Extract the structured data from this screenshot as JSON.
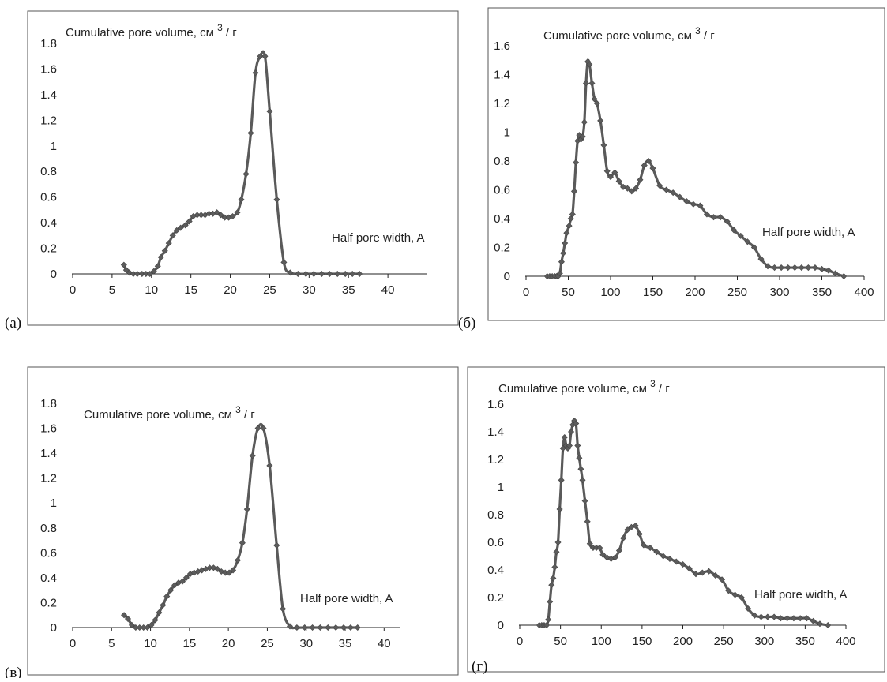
{
  "chart_data": [
    {
      "panel_label": "(а)",
      "type": "line",
      "ylabel_main": "Cumulative pore volume, см",
      "ylabel_sup": "3",
      "ylabel_tail": "/ г",
      "xlabel": "Half pore width, A",
      "xlim": [
        0,
        45
      ],
      "ylim": [
        0,
        1.8
      ],
      "x_ticks": [
        0,
        5,
        10,
        15,
        20,
        25,
        30,
        35,
        40
      ],
      "y_ticks": [
        0,
        0.2,
        0.4,
        0.6,
        0.8,
        1,
        1.2,
        1.4,
        1.6,
        1.8
      ],
      "series": [
        {
          "x": [
            6.5,
            6.8,
            7.2,
            7.7,
            8.2,
            8.8,
            9.3,
            9.8,
            10.3,
            10.8,
            11.2,
            11.7,
            12.2,
            12.7,
            13.2,
            13.7,
            14.3,
            14.8,
            15.3,
            15.8,
            16.3,
            16.8,
            17.3,
            17.8,
            18.3,
            18.8,
            19.3,
            19.8,
            20.3,
            20.9,
            21.4,
            22.0,
            22.6,
            23.2,
            23.8,
            24.4,
            25.0,
            25.9,
            26.8,
            27.6,
            28.6,
            29.6,
            30.6,
            31.6,
            32.6,
            33.6,
            34.6,
            35.5,
            36.4
          ],
          "y": [
            0.07,
            0.03,
            0.01,
            0.0,
            0.0,
            0.0,
            0.0,
            0.0,
            0.02,
            0.06,
            0.13,
            0.18,
            0.24,
            0.3,
            0.34,
            0.36,
            0.38,
            0.41,
            0.45,
            0.46,
            0.46,
            0.46,
            0.47,
            0.47,
            0.48,
            0.46,
            0.44,
            0.44,
            0.45,
            0.48,
            0.58,
            0.78,
            1.1,
            1.57,
            1.7,
            1.7,
            1.27,
            0.58,
            0.09,
            0.01,
            0.0,
            0.0,
            0.0,
            0.0,
            0.0,
            0.0,
            0.0,
            0.0,
            0.0
          ]
        }
      ]
    },
    {
      "panel_label": "(б)",
      "type": "line",
      "ylabel_main": "Cumulative pore volume, см",
      "ylabel_sup": "3",
      "ylabel_tail": "/ г",
      "xlabel": "Half pore width, A",
      "xlim": [
        0,
        400
      ],
      "ylim": [
        0,
        1.6
      ],
      "x_ticks": [
        0,
        50,
        100,
        150,
        200,
        250,
        300,
        350,
        400
      ],
      "y_ticks": [
        0,
        0.2,
        0.4,
        0.6,
        0.8,
        1,
        1.2,
        1.4,
        1.6
      ],
      "series": [
        {
          "x": [
            25,
            28,
            31,
            34,
            36,
            38,
            40,
            42,
            44,
            46,
            48,
            51,
            53,
            55,
            57,
            59,
            61,
            63,
            65,
            67,
            69,
            71,
            73,
            75,
            78,
            81,
            84,
            88,
            92,
            96,
            100,
            105,
            110,
            115,
            120,
            125,
            130,
            135,
            140,
            145,
            150,
            158,
            166,
            174,
            182,
            190,
            198,
            206,
            214,
            222,
            230,
            238,
            246,
            254,
            262,
            270,
            278,
            286,
            294,
            302,
            310,
            318,
            326,
            334,
            342,
            350,
            358,
            366,
            376
          ],
          "y": [
            0.0,
            0.0,
            0.0,
            0.0,
            0.0,
            0.0,
            0.02,
            0.1,
            0.16,
            0.23,
            0.3,
            0.35,
            0.4,
            0.43,
            0.59,
            0.79,
            0.94,
            0.98,
            0.95,
            0.97,
            1.07,
            1.34,
            1.49,
            1.47,
            1.34,
            1.23,
            1.2,
            1.08,
            0.91,
            0.73,
            0.69,
            0.72,
            0.66,
            0.62,
            0.61,
            0.59,
            0.61,
            0.67,
            0.77,
            0.8,
            0.75,
            0.63,
            0.6,
            0.58,
            0.55,
            0.52,
            0.5,
            0.49,
            0.43,
            0.41,
            0.41,
            0.38,
            0.32,
            0.28,
            0.24,
            0.2,
            0.12,
            0.07,
            0.06,
            0.06,
            0.06,
            0.06,
            0.06,
            0.06,
            0.06,
            0.05,
            0.04,
            0.02,
            0.0
          ]
        }
      ]
    },
    {
      "panel_label": "(в)",
      "type": "line",
      "ylabel_main": "Cumulative pore volume, см",
      "ylabel_sup": "3",
      "ylabel_tail": "/ г",
      "xlabel": "Half pore width, A",
      "xlim": [
        0,
        42
      ],
      "ylim": [
        0,
        1.8
      ],
      "x_ticks": [
        0,
        5,
        10,
        15,
        20,
        25,
        30,
        35,
        40
      ],
      "y_ticks": [
        0,
        0.2,
        0.4,
        0.6,
        0.8,
        1,
        1.2,
        1.4,
        1.6,
        1.8
      ],
      "series": [
        {
          "x": [
            6.6,
            7.1,
            7.6,
            8.1,
            8.6,
            9.1,
            9.6,
            10.1,
            10.6,
            11.1,
            11.6,
            12.1,
            12.6,
            13.1,
            13.6,
            14.1,
            14.6,
            15.1,
            15.6,
            16.1,
            16.6,
            17.1,
            17.6,
            18.1,
            18.6,
            19.1,
            19.6,
            20.1,
            20.6,
            21.2,
            21.8,
            22.4,
            23.1,
            23.8,
            24.5,
            25.3,
            26.2,
            27.0,
            27.9,
            28.8,
            29.8,
            30.8,
            31.8,
            32.8,
            33.8,
            34.8,
            35.7,
            36.6
          ],
          "y": [
            0.1,
            0.07,
            0.02,
            0.0,
            0.0,
            0.0,
            0.0,
            0.02,
            0.06,
            0.12,
            0.18,
            0.25,
            0.3,
            0.34,
            0.36,
            0.37,
            0.4,
            0.43,
            0.44,
            0.45,
            0.46,
            0.47,
            0.48,
            0.48,
            0.47,
            0.45,
            0.44,
            0.44,
            0.46,
            0.54,
            0.68,
            0.95,
            1.38,
            1.6,
            1.6,
            1.3,
            0.66,
            0.15,
            0.01,
            0.0,
            0.0,
            0.0,
            0.0,
            0.0,
            0.0,
            0.0,
            0.0,
            0.0
          ]
        }
      ]
    },
    {
      "panel_label": "(г)",
      "type": "line",
      "ylabel_main": "Cumulative pore volume, см",
      "ylabel_sup": "3",
      "ylabel_tail": "/ г",
      "xlabel": "Half pore width, A",
      "xlim": [
        0,
        400
      ],
      "ylim": [
        0,
        1.6
      ],
      "x_ticks": [
        0,
        50,
        100,
        150,
        200,
        250,
        300,
        350,
        400
      ],
      "y_ticks": [
        0,
        0.2,
        0.4,
        0.6,
        0.8,
        1,
        1.2,
        1.4,
        1.6
      ],
      "series": [
        {
          "x": [
            24,
            27,
            30,
            33,
            35,
            37,
            39,
            41,
            43,
            45,
            47,
            49,
            51,
            53,
            55,
            57,
            59,
            61,
            63,
            65,
            67,
            69,
            71,
            73,
            75,
            77,
            80,
            83,
            86,
            90,
            94,
            98,
            102,
            107,
            112,
            117,
            122,
            127,
            132,
            137,
            142,
            147,
            152,
            160,
            168,
            176,
            184,
            192,
            200,
            208,
            216,
            224,
            232,
            240,
            248,
            256,
            264,
            272,
            280,
            288,
            296,
            304,
            312,
            320,
            328,
            336,
            344,
            352,
            360,
            368,
            378
          ],
          "y": [
            0.0,
            0.0,
            0.0,
            0.0,
            0.04,
            0.17,
            0.29,
            0.34,
            0.42,
            0.53,
            0.6,
            0.84,
            1.05,
            1.28,
            1.36,
            1.3,
            1.28,
            1.3,
            1.4,
            1.45,
            1.48,
            1.46,
            1.3,
            1.21,
            1.13,
            1.05,
            0.9,
            0.75,
            0.59,
            0.56,
            0.56,
            0.56,
            0.51,
            0.49,
            0.48,
            0.49,
            0.54,
            0.63,
            0.69,
            0.71,
            0.72,
            0.66,
            0.58,
            0.56,
            0.53,
            0.5,
            0.48,
            0.46,
            0.44,
            0.41,
            0.37,
            0.38,
            0.39,
            0.36,
            0.33,
            0.25,
            0.22,
            0.2,
            0.12,
            0.07,
            0.06,
            0.06,
            0.06,
            0.05,
            0.05,
            0.05,
            0.05,
            0.05,
            0.03,
            0.01,
            0.0
          ]
        }
      ]
    }
  ]
}
